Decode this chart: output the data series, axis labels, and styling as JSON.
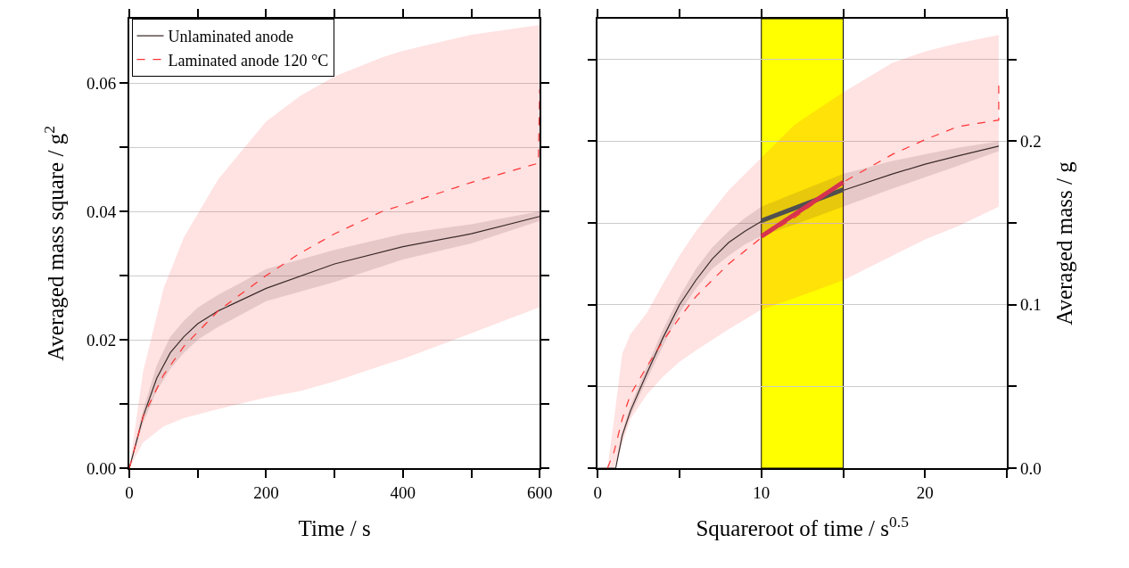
{
  "chart_data": [
    {
      "type": "line",
      "xlabel": "Time / s",
      "ylabel": "Averaged mass square / g$^{2}$",
      "xlim": [
        0,
        600
      ],
      "ylim": [
        0,
        0.07
      ],
      "xticks": [
        0,
        {
          "value": 100,
          "label": null
        },
        200,
        {
          "value": 300,
          "label": null
        },
        400,
        {
          "value": 500,
          "label": null
        },
        600
      ],
      "yticks": [
        "0.00",
        {
          "value": 0.01,
          "label": null
        },
        {
          "value": 0.02,
          "label": "0.02"
        },
        {
          "value": 0.03,
          "label": null
        },
        {
          "value": 0.04,
          "label": "0.04"
        },
        {
          "value": 0.05,
          "label": null
        },
        {
          "value": 0.06,
          "label": "0.06"
        }
      ],
      "grid": "y",
      "legend": "top left",
      "series": [
        {
          "name": "Unlaminated anode",
          "color": "#3b2b2b",
          "line_style": "solid",
          "x": [
            0,
            20,
            40,
            60,
            80,
            100,
            130,
            200,
            300,
            400,
            500,
            600
          ],
          "values": [
            0,
            0.008,
            0.014,
            0.018,
            0.0205,
            0.0225,
            0.0245,
            0.028,
            0.0318,
            0.0345,
            0.0365,
            0.0392
          ],
          "lower": [
            0,
            0.007,
            0.012,
            0.0155,
            0.018,
            0.02,
            0.022,
            0.026,
            0.029,
            0.0325,
            0.035,
            0.0385
          ],
          "upper": [
            0,
            0.009,
            0.016,
            0.0205,
            0.023,
            0.025,
            0.027,
            0.031,
            0.034,
            0.0365,
            0.038,
            0.04
          ]
        },
        {
          "name": "Laminated anode 120 °C",
          "color": "#ff3333",
          "line_style": "dashed",
          "x": [
            0,
            20,
            50,
            80,
            130,
            200,
            250,
            300,
            370,
            400,
            500,
            598,
            600
          ],
          "values": [
            0,
            0.008,
            0.0145,
            0.019,
            0.0245,
            0.03,
            0.0335,
            0.0365,
            0.04,
            0.041,
            0.0445,
            0.0475,
            0.059
          ],
          "lower": [
            0,
            0.004,
            0.0065,
            0.0078,
            0.0092,
            0.011,
            0.012,
            0.0135,
            0.016,
            0.017,
            0.021,
            0.025,
            0.025
          ],
          "upper": [
            0,
            0.015,
            0.028,
            0.036,
            0.045,
            0.054,
            0.058,
            0.061,
            0.064,
            0.065,
            0.0675,
            0.069,
            0.069
          ]
        }
      ]
    },
    {
      "type": "line",
      "xlabel": "Squareroot of time / s$^{0.5}$",
      "y2label": "Averaged mass / g",
      "xlim": [
        0,
        25
      ],
      "y2lim": [
        0,
        0.275
      ],
      "xticks": [
        0,
        {
          "value": 5,
          "label": null
        },
        10,
        {
          "value": 15,
          "label": null
        },
        20,
        {
          "value": 25,
          "label": null
        }
      ],
      "y2ticks": [
        {
          "value": 0,
          "label": "0.0"
        },
        {
          "value": 0.05,
          "label": null
        },
        0.1,
        {
          "value": 0.15,
          "label": null
        },
        0.2,
        {
          "value": 0.25,
          "label": null
        }
      ],
      "grid": "y",
      "legend": false,
      "bands": [
        {
          "axis": "x",
          "from": 10,
          "to": 15,
          "color": "#ffff00"
        }
      ],
      "series": [
        {
          "color": "#3b2b2b",
          "line_style": "solid",
          "axis": "y2",
          "x": [
            0,
            1.1,
            1.5,
            2,
            3,
            4,
            5,
            6,
            7,
            8,
            9,
            10,
            12,
            15,
            18,
            20,
            22,
            24.5
          ],
          "values": [
            0,
            0,
            0.02,
            0.035,
            0.058,
            0.08,
            0.1,
            0.115,
            0.128,
            0.138,
            0.145,
            0.151,
            0.158,
            0.17,
            0.18,
            0.186,
            0.191,
            0.197
          ],
          "lower": [
            0,
            0,
            0.018,
            0.032,
            0.054,
            0.075,
            0.095,
            0.11,
            0.122,
            0.13,
            0.137,
            0.142,
            0.149,
            0.16,
            0.171,
            0.178,
            0.185,
            0.194
          ],
          "upper": [
            0,
            0,
            0.022,
            0.038,
            0.062,
            0.085,
            0.105,
            0.122,
            0.135,
            0.145,
            0.153,
            0.16,
            0.168,
            0.18,
            0.188,
            0.192,
            0.196,
            0.2
          ]
        },
        {
          "color": "#ff3333",
          "line_style": "dashed",
          "axis": "y2",
          "x": [
            0,
            0.6,
            1,
            1.5,
            2,
            3,
            4,
            5,
            6,
            8,
            10,
            12,
            15,
            18,
            20,
            22,
            24.5,
            24.5
          ],
          "values": [
            null,
            0,
            0.01,
            0.03,
            0.045,
            0.062,
            0.078,
            0.092,
            0.105,
            0.125,
            0.141,
            0.153,
            0.175,
            0.192,
            0.201,
            0.209,
            0.213,
            0.235
          ],
          "lower": [
            0,
            0,
            0,
            0.015,
            0.03,
            0.045,
            0.056,
            0.065,
            0.072,
            0.085,
            0.097,
            0.104,
            0.115,
            0.13,
            0.14,
            0.148,
            0.16,
            0.16
          ],
          "upper": [
            0,
            0,
            0.03,
            0.07,
            0.082,
            0.095,
            0.113,
            0.13,
            0.145,
            0.17,
            0.19,
            0.21,
            0.23,
            0.248,
            0.255,
            0.26,
            0.265,
            0.265
          ]
        },
        {
          "color": "#505050",
          "line_style": "solid",
          "axis": "y2",
          "x": [
            10,
            15
          ],
          "values": [
            0.1513,
            0.1704
          ]
        },
        {
          "color": "#d6334f",
          "line_style": "solid",
          "axis": "y2",
          "x": [
            10,
            15
          ],
          "values": [
            0.1418,
            0.175
          ]
        }
      ]
    }
  ]
}
